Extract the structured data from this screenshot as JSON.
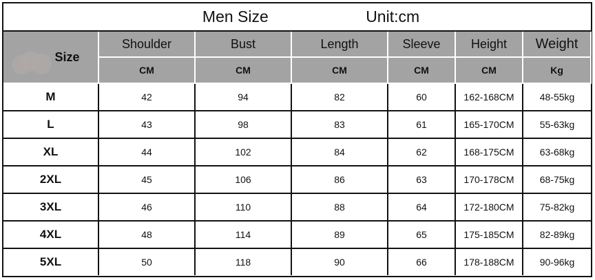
{
  "title": "Men Size",
  "unit": "Unit:cm",
  "size_header": "Size",
  "columns": [
    {
      "name": "Shoulder",
      "unit": "CM"
    },
    {
      "name": "Bust",
      "unit": "CM"
    },
    {
      "name": "Length",
      "unit": "CM"
    },
    {
      "name": "Sleeve",
      "unit": "CM"
    },
    {
      "name": "Height",
      "unit": "CM"
    },
    {
      "name": "Weight",
      "unit": "Kg"
    }
  ],
  "rows": [
    {
      "size": "M",
      "values": [
        "42",
        "94",
        "82",
        "60",
        "162-168CM",
        "48-55kg"
      ]
    },
    {
      "size": "L",
      "values": [
        "43",
        "98",
        "83",
        "61",
        "165-170CM",
        "55-63kg"
      ]
    },
    {
      "size": "XL",
      "values": [
        "44",
        "102",
        "84",
        "62",
        "168-175CM",
        "63-68kg"
      ]
    },
    {
      "size": "2XL",
      "values": [
        "45",
        "106",
        "86",
        "63",
        "170-178CM",
        "68-75kg"
      ]
    },
    {
      "size": "3XL",
      "values": [
        "46",
        "110",
        "88",
        "64",
        "172-180CM",
        "75-82kg"
      ]
    },
    {
      "size": "4XL",
      "values": [
        "48",
        "114",
        "89",
        "65",
        "175-185CM",
        "82-89kg"
      ]
    },
    {
      "size": "5XL",
      "values": [
        "50",
        "118",
        "90",
        "66",
        "178-188CM",
        "90-96kg"
      ]
    }
  ],
  "colors": {
    "header_bg": "#a3a3a3",
    "border": "#111111"
  }
}
